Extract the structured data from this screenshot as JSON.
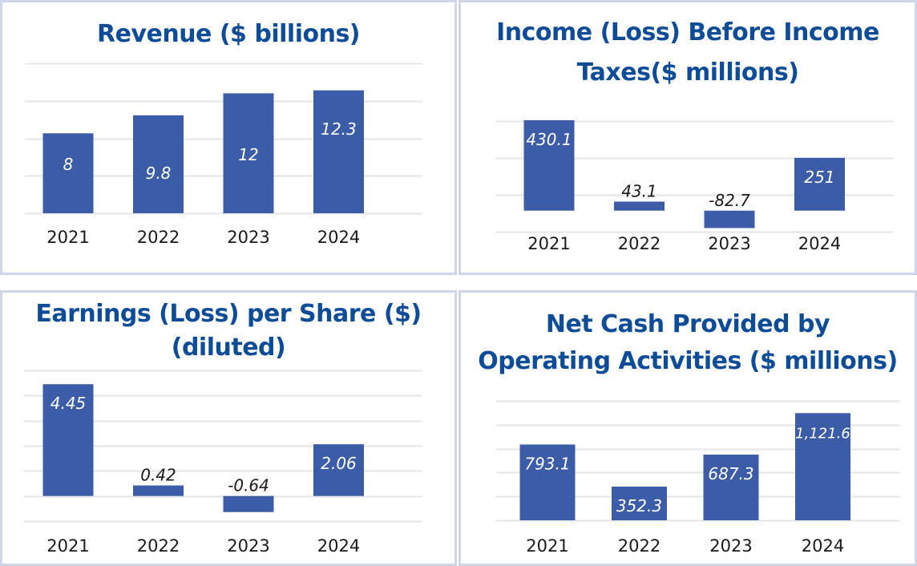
{
  "colors": {
    "bar": "#3c5ca8",
    "title": "#0f4c98",
    "grid": "#e6e6e6",
    "border": "#cfd6ea",
    "axis_text": "#1a1a1a"
  },
  "chart_data": [
    {
      "type": "bar",
      "title": "Revenue ($ billions)",
      "title_lines": [
        "Revenue ($ billions)"
      ],
      "categories": [
        "2021",
        "2022",
        "2023",
        "2024"
      ],
      "values": [
        8,
        9.8,
        12,
        12.3
      ],
      "labels": [
        "8",
        "9.8",
        "12",
        "12.3"
      ],
      "xlabel": "",
      "ylabel": "",
      "ylim": [
        0,
        15
      ],
      "grid_step": 3.75,
      "grid": true,
      "legend": "none"
    },
    {
      "type": "bar",
      "title": "Income (Loss) Before Income Taxes($ millions)",
      "title_lines": [
        "Income (Loss) Before Income",
        "Taxes($ millions)"
      ],
      "categories": [
        "2021",
        "2022",
        "2023",
        "2024"
      ],
      "values": [
        430.1,
        43.1,
        -82.7,
        251
      ],
      "labels": [
        "430.1",
        "43.1",
        "-82.7",
        "251"
      ],
      "xlabel": "",
      "ylabel": "",
      "ylim": [
        -100,
        525
      ],
      "grid_step": 175,
      "grid": true,
      "legend": "none"
    },
    {
      "type": "bar",
      "title": "Earnings (Loss) per Share ($) (diluted)",
      "title_lines": [
        "Earnings (Loss) per Share ($)",
        "(diluted)"
      ],
      "categories": [
        "2021",
        "2022",
        "2023",
        "2024"
      ],
      "values": [
        4.45,
        0.42,
        -0.64,
        2.06
      ],
      "labels": [
        "4.45",
        "0.42",
        "-0.64",
        "2.06"
      ],
      "xlabel": "",
      "ylabel": "",
      "ylim": [
        -1,
        5
      ],
      "grid_step": 1,
      "grid": true,
      "legend": "none"
    },
    {
      "type": "bar",
      "title": "Net Cash Provided by Operating Activities ($ millions)",
      "title_lines": [
        "Net Cash Provided by",
        "Operating Activities ($ millions)"
      ],
      "categories": [
        "2021",
        "2022",
        "2023",
        "2024"
      ],
      "values": [
        793.1,
        352.3,
        687.3,
        1121.6
      ],
      "labels": [
        "793.1",
        "352.3",
        "687.3",
        "1,121.6"
      ],
      "xlabel": "",
      "ylabel": "",
      "ylim": [
        0,
        1250
      ],
      "grid_step": 250,
      "grid": true,
      "legend": "none"
    }
  ]
}
